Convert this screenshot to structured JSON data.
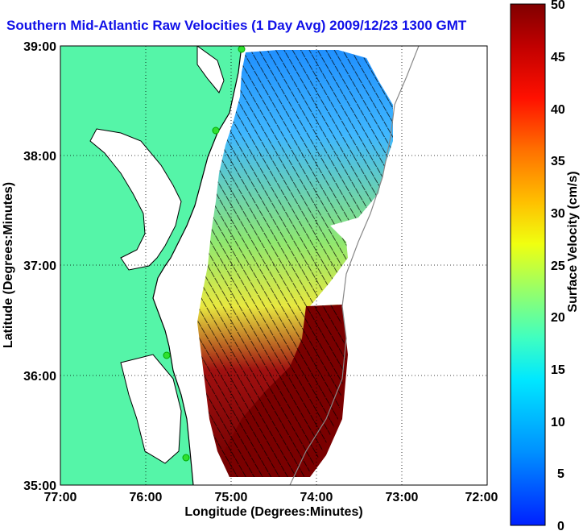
{
  "title": "Southern Mid-Atlantic Raw Velocities (1 Day Avg) 2009/12/23 1300 GMT",
  "map": {
    "xlabel": "Longitude (Degrees:Minutes)",
    "ylabel": "Latitude (Degrees:Minutes)",
    "x_ticks": [
      "77:00",
      "76:00",
      "75:00",
      "74:00",
      "73:00",
      "72:00"
    ],
    "y_ticks": [
      "39:00",
      "38:00",
      "37:00",
      "36:00",
      "35:00"
    ],
    "land_color": "#55f5a8",
    "grid": "dotted"
  },
  "colorbar": {
    "label": "Surface Velocity (cm/s)",
    "unit": "cm/s",
    "range": [
      0,
      50
    ],
    "ticks": [
      "50",
      "45",
      "40",
      "35",
      "30",
      "25",
      "20",
      "15",
      "10",
      "5",
      "0"
    ],
    "colormap": "jet"
  },
  "chart_data": {
    "type": "heatmap",
    "title": "Southern Mid-Atlantic Raw Velocities (1 Day Avg) 2009/12/23 1300 GMT",
    "xlabel": "Longitude (Degrees:Minutes)",
    "ylabel": "Latitude (Degrees:Minutes)",
    "xlim": [
      "77:00 W",
      "72:00 W"
    ],
    "ylim": [
      "35:00 N",
      "39:00 N"
    ],
    "color_range": [
      0,
      50
    ],
    "color_label": "Surface Velocity (cm/s)"
  }
}
